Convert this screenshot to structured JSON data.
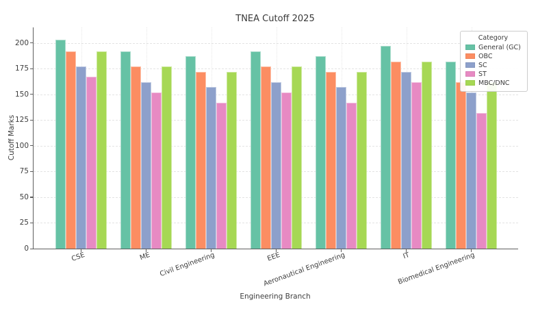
{
  "chart_data": {
    "type": "bar",
    "title": "TNEA Cutoff 2025",
    "xlabel": "Engineering Branch",
    "ylabel": "Cutoff Marks",
    "categories": [
      "CSE",
      "ME",
      "Civil Engineering",
      "EEE",
      "Aeronautical Engineering",
      "IT",
      "Biomedical Engineering"
    ],
    "series": [
      {
        "name": "General (GC)",
        "color": "#66c2a5",
        "values": [
          203,
          192,
          187,
          192,
          187,
          197,
          182
        ]
      },
      {
        "name": "OBC",
        "color": "#fc8d62",
        "values": [
          192,
          177,
          172,
          177,
          172,
          182,
          162
        ]
      },
      {
        "name": "SC",
        "color": "#8da0cb",
        "values": [
          177,
          162,
          157,
          162,
          157,
          172,
          152
        ]
      },
      {
        "name": "ST",
        "color": "#e78ac3",
        "values": [
          167,
          152,
          142,
          152,
          142,
          162,
          132
        ]
      },
      {
        "name": "MBC/DNC",
        "color": "#a6d854",
        "values": [
          192,
          177,
          172,
          177,
          172,
          182,
          162
        ]
      }
    ],
    "ylim": [
      0,
      215
    ],
    "yticks": [
      0,
      25,
      50,
      75,
      100,
      125,
      150,
      175,
      200
    ],
    "grid": "dashed",
    "legend_title": "Category",
    "legend_position": "upper right"
  }
}
